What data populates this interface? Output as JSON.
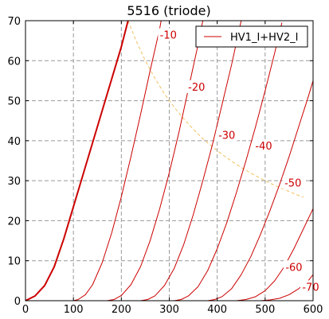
{
  "chart_data": {
    "type": "line",
    "title": "5516 (triode)",
    "xlim": [
      0,
      600
    ],
    "ylim": [
      0,
      70
    ],
    "xticks": [
      0,
      100,
      200,
      300,
      400,
      500,
      600
    ],
    "yticks": [
      0,
      10,
      20,
      30,
      40,
      50,
      60,
      70
    ],
    "grid": true,
    "legend": {
      "label": "HV1_I+HV2_I",
      "placement": "top-right"
    },
    "colors": {
      "curves": "#cc0000",
      "dissipation": "#f0c060",
      "grid": "#999999"
    },
    "series": [
      {
        "label": "",
        "values": [
          [
            0,
            0
          ],
          [
            20,
            1.2
          ],
          [
            40,
            3.8
          ],
          [
            60,
            8.5
          ],
          [
            80,
            15.5
          ],
          [
            100,
            23.5
          ],
          [
            120,
            31.5
          ],
          [
            140,
            39.5
          ],
          [
            160,
            47.5
          ],
          [
            180,
            55.5
          ],
          [
            200,
            63.5
          ],
          [
            214,
            70
          ]
        ]
      },
      {
        "label": "-10",
        "values": [
          [
            100,
            0
          ],
          [
            110,
            0.3
          ],
          [
            125,
            1.5
          ],
          [
            140,
            4
          ],
          [
            160,
            9.5
          ],
          [
            180,
            17
          ],
          [
            200,
            26
          ],
          [
            220,
            36
          ],
          [
            240,
            46.5
          ],
          [
            260,
            57.5
          ],
          [
            280,
            68
          ],
          [
            283,
            70
          ]
        ]
      },
      {
        "label": "-20",
        "values": [
          [
            170,
            0
          ],
          [
            185,
            0.3
          ],
          [
            200,
            1.3
          ],
          [
            220,
            4
          ],
          [
            240,
            8.5
          ],
          [
            260,
            15
          ],
          [
            280,
            23
          ],
          [
            300,
            32
          ],
          [
            320,
            42
          ],
          [
            340,
            53
          ],
          [
            360,
            64
          ],
          [
            370,
            70
          ]
        ]
      },
      {
        "label": "-30",
        "values": [
          [
            240,
            0
          ],
          [
            255,
            0.3
          ],
          [
            270,
            1.2
          ],
          [
            290,
            3.8
          ],
          [
            310,
            8
          ],
          [
            330,
            14
          ],
          [
            350,
            21.5
          ],
          [
            370,
            30
          ],
          [
            390,
            39
          ],
          [
            410,
            49
          ],
          [
            430,
            59
          ],
          [
            450,
            70
          ]
        ]
      },
      {
        "label": "-40",
        "values": [
          [
            310,
            0
          ],
          [
            325,
            0.3
          ],
          [
            340,
            1.2
          ],
          [
            360,
            3.5
          ],
          [
            380,
            7.5
          ],
          [
            400,
            13
          ],
          [
            420,
            19.5
          ],
          [
            440,
            27
          ],
          [
            460,
            35
          ],
          [
            480,
            43.5
          ],
          [
            500,
            52.5
          ],
          [
            520,
            62
          ],
          [
            535,
            69.5
          ]
        ]
      },
      {
        "label": "-50",
        "values": [
          [
            380,
            0
          ],
          [
            395,
            0.3
          ],
          [
            410,
            1
          ],
          [
            430,
            3
          ],
          [
            450,
            6.5
          ],
          [
            470,
            11
          ],
          [
            490,
            16.5
          ],
          [
            510,
            22.5
          ],
          [
            530,
            29
          ],
          [
            550,
            36
          ],
          [
            570,
            43.5
          ],
          [
            590,
            51
          ],
          [
            600,
            55
          ]
        ]
      },
      {
        "label": "-60",
        "values": [
          [
            440,
            0
          ],
          [
            460,
            0.3
          ],
          [
            480,
            1
          ],
          [
            500,
            2.5
          ],
          [
            520,
            5
          ],
          [
            540,
            8.5
          ],
          [
            560,
            13
          ],
          [
            580,
            18
          ],
          [
            600,
            23
          ]
        ]
      },
      {
        "label": "-70",
        "values": [
          [
            490,
            0
          ],
          [
            510,
            0.2
          ],
          [
            530,
            0.6
          ],
          [
            550,
            1.5
          ],
          [
            570,
            3
          ],
          [
            590,
            5
          ],
          [
            600,
            6.5
          ]
        ]
      }
    ],
    "dissipation": {
      "style": "dashed",
      "values": [
        [
          214,
          70
        ],
        [
          230,
          65.2
        ],
        [
          250,
          60
        ],
        [
          270,
          55.6
        ],
        [
          290,
          51.7
        ],
        [
          310,
          48.4
        ],
        [
          330,
          45.5
        ],
        [
          350,
          42.9
        ],
        [
          370,
          40.5
        ],
        [
          390,
          38.5
        ],
        [
          410,
          36.6
        ],
        [
          430,
          34.9
        ],
        [
          450,
          33.3
        ],
        [
          470,
          31.9
        ],
        [
          490,
          30.6
        ],
        [
          510,
          29.4
        ],
        [
          530,
          28.3
        ],
        [
          550,
          27.3
        ],
        [
          570,
          26.3
        ],
        [
          580,
          25.9
        ]
      ]
    },
    "curve_labels": [
      {
        "text": "-10",
        "x": 298,
        "y": 66.5
      },
      {
        "text": "-20",
        "x": 357,
        "y": 53.5
      },
      {
        "text": "-30",
        "x": 420,
        "y": 41.5
      },
      {
        "text": "-40",
        "x": 497,
        "y": 38.8
      },
      {
        "text": "-50",
        "x": 558,
        "y": 29.5
      },
      {
        "text": "-60",
        "x": 560,
        "y": 8.5
      },
      {
        "text": "-70",
        "x": 595,
        "y": 3.5
      }
    ]
  }
}
